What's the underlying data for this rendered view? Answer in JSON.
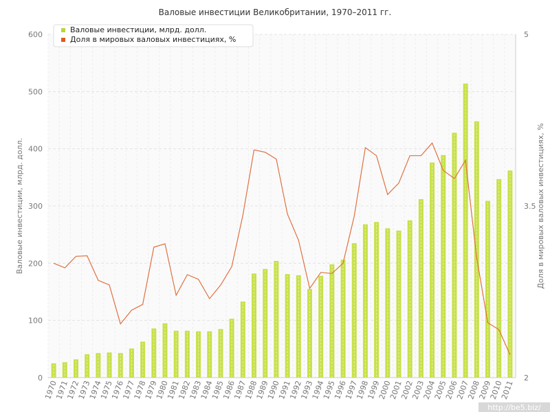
{
  "chart_data": {
    "type": "bar+line",
    "title": "Валовые инвестиции Великобритании, 1970–2011 гг.",
    "categories": [
      "1970",
      "1971",
      "1972",
      "1973",
      "1974",
      "1975",
      "1976",
      "1977",
      "1978",
      "1979",
      "1980",
      "1981",
      "1982",
      "1983",
      "1984",
      "1985",
      "1986",
      "1987",
      "1988",
      "1989",
      "1990",
      "1991",
      "1992",
      "1993",
      "1994",
      "1995",
      "1996",
      "1997",
      "1998",
      "1999",
      "2000",
      "2001",
      "2002",
      "2003",
      "2004",
      "2005",
      "2006",
      "2007",
      "2008",
      "2009",
      "2010",
      "2011"
    ],
    "series": [
      {
        "name": "Валовые инвестиции, млрд. долл.",
        "type": "bar",
        "axis": "left",
        "color": "#c8e04a",
        "values": [
          25,
          27,
          32,
          41,
          43,
          44,
          43,
          51,
          63,
          86,
          95,
          82,
          82,
          81,
          81,
          85,
          103,
          133,
          182,
          190,
          204,
          181,
          179,
          155,
          178,
          198,
          206,
          235,
          268,
          272,
          261,
          257,
          275,
          312,
          376,
          389,
          428,
          514,
          448,
          309,
          347,
          362
        ]
      },
      {
        "name": "Доля в мировых валовых инвестициях, %",
        "type": "line",
        "axis": "right",
        "color": "#e07040",
        "values": [
          3.0,
          2.96,
          3.06,
          3.065,
          2.85,
          2.81,
          2.47,
          2.59,
          2.64,
          3.14,
          3.17,
          2.72,
          2.9,
          2.86,
          2.69,
          2.81,
          2.97,
          3.42,
          3.99,
          3.97,
          3.91,
          3.43,
          3.2,
          2.78,
          2.92,
          2.91,
          3.0,
          3.41,
          4.01,
          3.94,
          3.6,
          3.7,
          3.94,
          3.94,
          4.05,
          3.81,
          3.74,
          3.9,
          3.05,
          2.48,
          2.42,
          2.2
        ]
      }
    ],
    "ylabel": "Валовые инвестиции, млрд. долл.",
    "ylabel_right": "Доля в мировых валовых инвестициях, %",
    "ylim": [
      0,
      600
    ],
    "ylim_right": [
      2,
      5
    ],
    "yticks": [
      "0",
      "100",
      "200",
      "300",
      "400",
      "500",
      "600"
    ],
    "yticks_right": [
      "2",
      "3.5",
      "5"
    ],
    "grid": true,
    "legend": "top-left"
  },
  "watermark": "http://be5.biz/"
}
